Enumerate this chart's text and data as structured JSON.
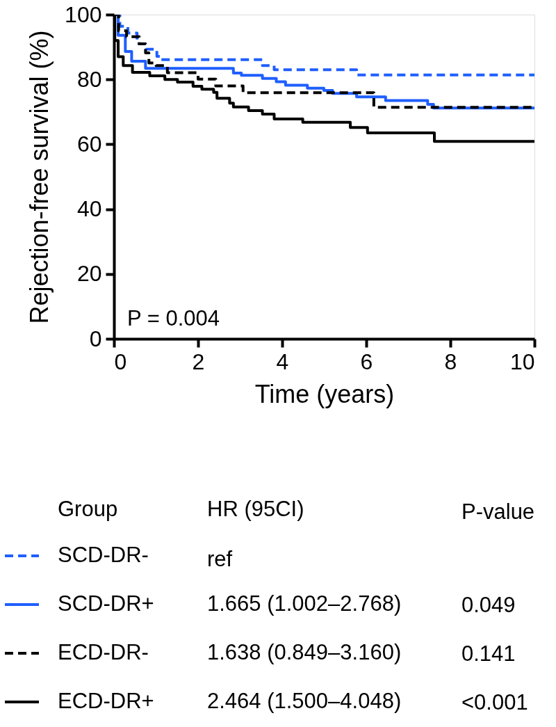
{
  "chart_data": {
    "type": "step",
    "xlabel": "Time (years)",
    "ylabel": "Rejection-free survival (%)",
    "xlim": [
      0,
      10
    ],
    "xticks": [
      0,
      2,
      4,
      6,
      8,
      10
    ],
    "ylim": [
      0,
      100
    ],
    "yticks": [
      0,
      20,
      40,
      60,
      80,
      100
    ],
    "grid": false,
    "legend": "bottom",
    "legend_title": "Group",
    "series": [
      {
        "name": "SCD-DR-",
        "color": "#1f5fff",
        "line_style": "dashed",
        "x": [
          0,
          0.14,
          0.33,
          0.55,
          0.77,
          1.02,
          1.1,
          3.53,
          3.81,
          5.77,
          10
        ],
        "values": [
          100,
          96.4,
          94.3,
          91,
          89.3,
          87.1,
          86.1,
          84.3,
          83,
          81.4,
          81.4
        ]
      },
      {
        "name": "SCD-DR+",
        "color": "#1f5fff",
        "line_style": "solid",
        "x": [
          0,
          0.1,
          0.27,
          0.42,
          0.75,
          2.84,
          3.03,
          3.53,
          3.86,
          4.08,
          4.6,
          4.99,
          5.2,
          5.77,
          6.46,
          7.46,
          7.6,
          10
        ],
        "values": [
          100,
          93.6,
          88.6,
          85.6,
          83.4,
          82,
          81.3,
          80.3,
          79.3,
          78.2,
          77.3,
          76.6,
          75.7,
          74.6,
          73.5,
          72.3,
          71.2,
          71.2
        ]
      },
      {
        "name": "ECD-DR-",
        "color": "#000000",
        "line_style": "dashed",
        "x": [
          0,
          0.11,
          0.3,
          0.6,
          0.75,
          0.83,
          1.0,
          1.27,
          2.0,
          2.42,
          3.07,
          6.18,
          10
        ],
        "values": [
          100,
          95,
          93.2,
          91,
          88.2,
          85.1,
          84.3,
          82.1,
          80.1,
          78,
          75.9,
          71.4,
          71.4
        ]
      },
      {
        "name": "ECD-DR+",
        "color": "#000000",
        "line_style": "solid",
        "x": [
          0,
          0.02,
          0.1,
          0.22,
          0.44,
          0.85,
          1.21,
          1.51,
          1.88,
          2.09,
          2.37,
          2.45,
          2.75,
          2.84,
          3.2,
          3.53,
          3.81,
          4.49,
          5.62,
          6.03,
          7.62,
          10
        ],
        "values": [
          100,
          92,
          87,
          84.3,
          82.2,
          81.1,
          80,
          79.2,
          77.9,
          77,
          76,
          74.2,
          72.7,
          71.5,
          70.4,
          69.3,
          67.8,
          66.8,
          65.2,
          63.5,
          60.9,
          60.9
        ]
      }
    ],
    "annotations": [
      "P = 0.004",
      "HR (95CI)",
      "P-value",
      "ref",
      "1.665 (1.002–2.768)",
      "1.638 (0.849–3.160)",
      "2.464 (1.500–4.048)",
      "0.049",
      "0.141",
      "<0.001"
    ]
  }
}
